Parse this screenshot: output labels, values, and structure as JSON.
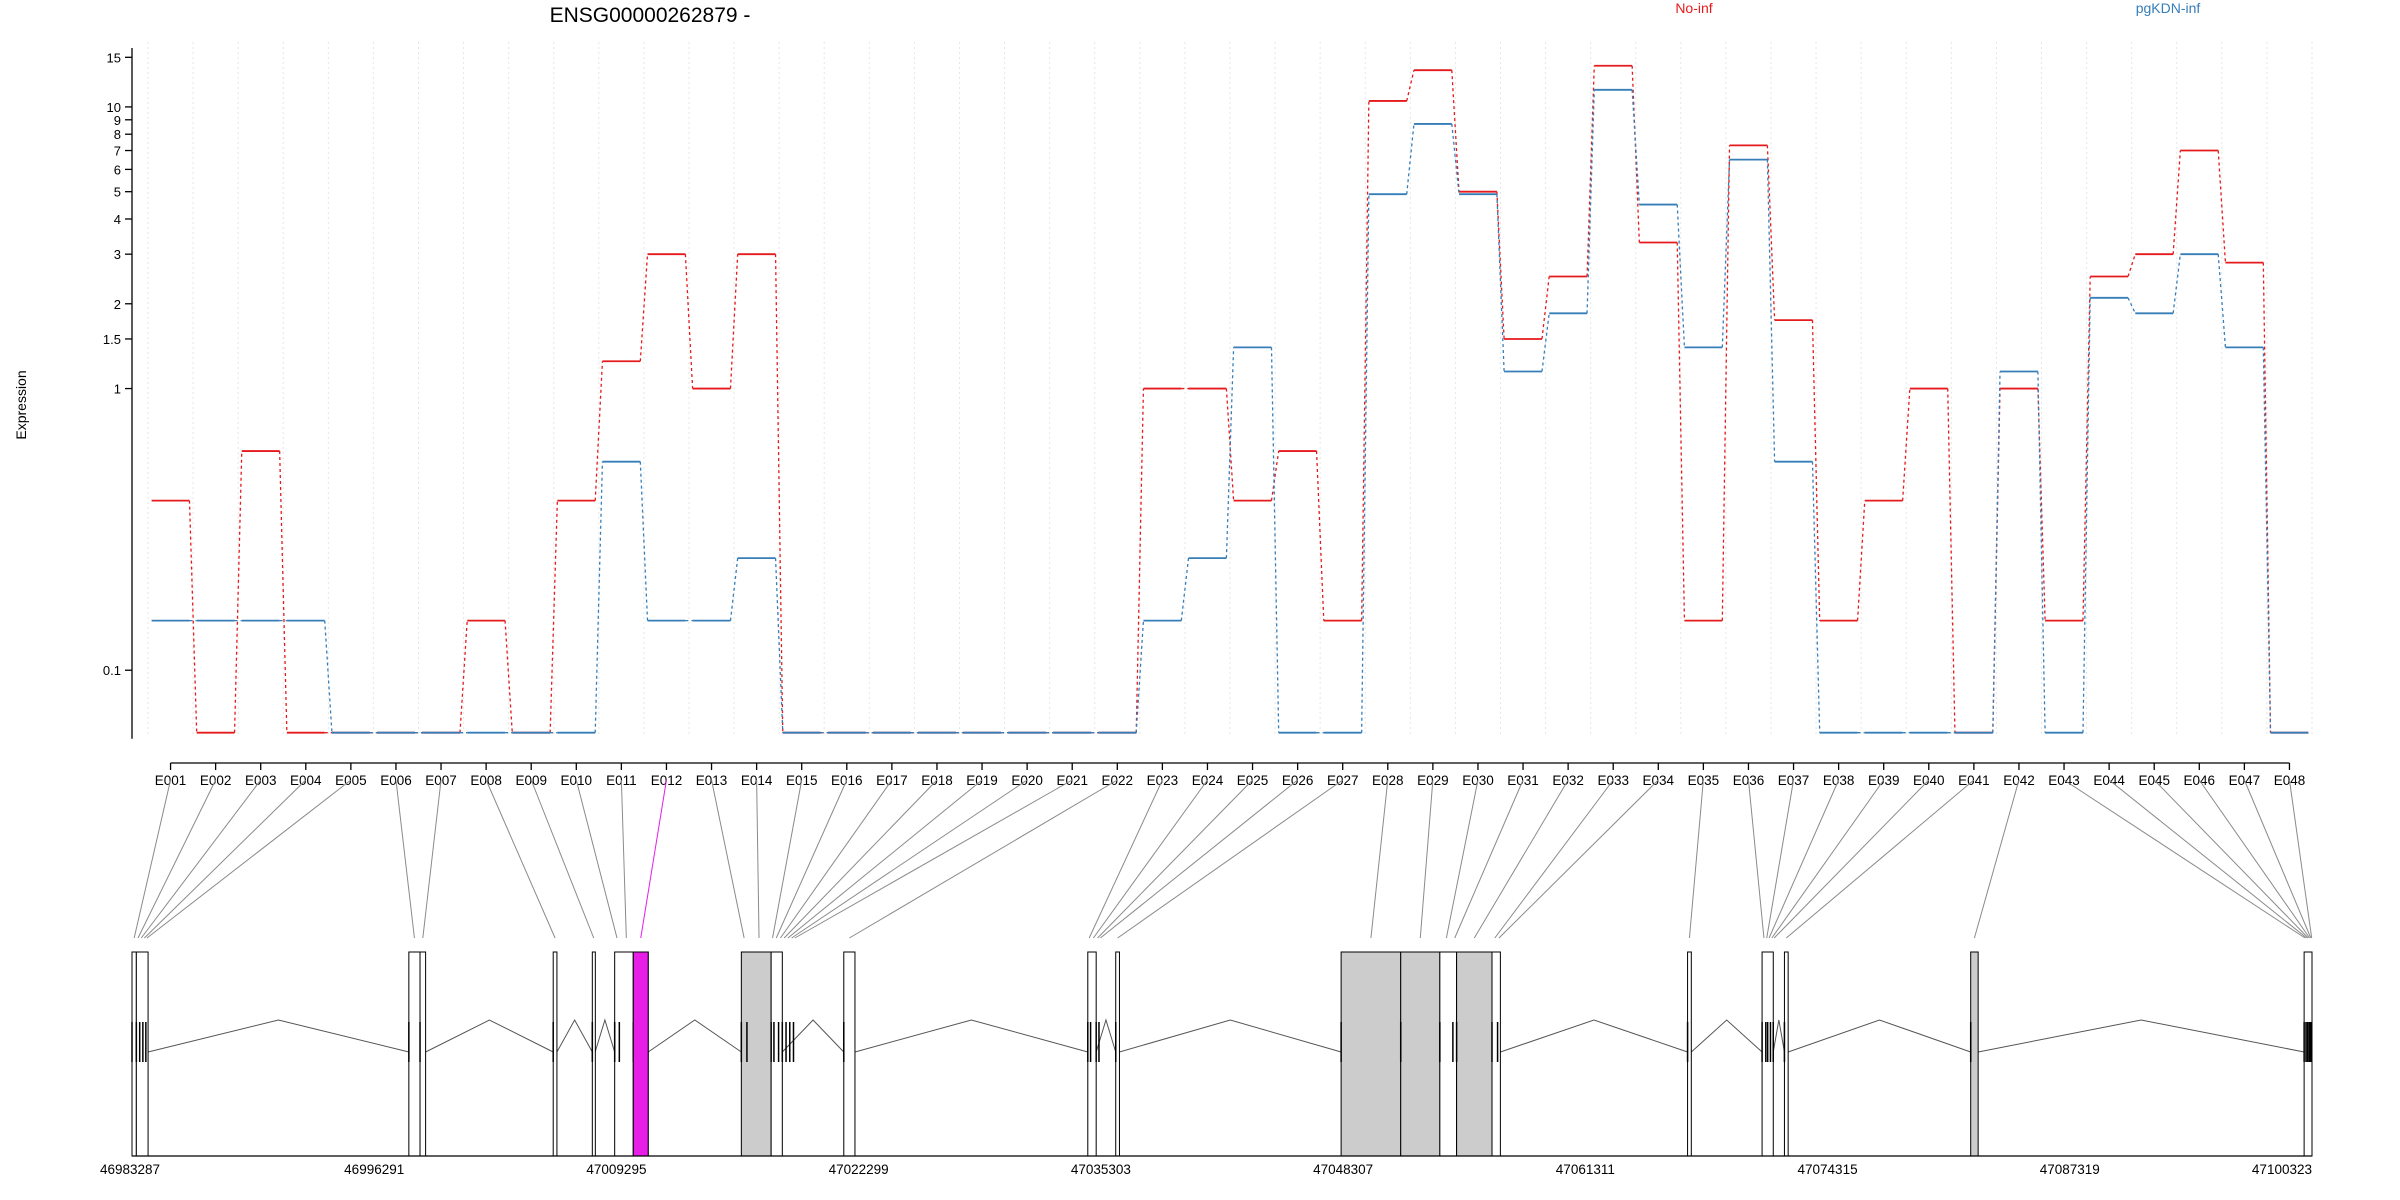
{
  "chart_data": {
    "type": "line",
    "title": "ENSG00000262879 -",
    "ylabel": "Expression",
    "xlabel": "",
    "y_scale": "log",
    "y_ticks": [
      0.1,
      1,
      1.5,
      2,
      3,
      4,
      5,
      6,
      7,
      8,
      9,
      10,
      15
    ],
    "y_tick_labels": [
      "0.1",
      "1",
      "1.5",
      "2",
      "3",
      "4",
      "5",
      "6",
      "7",
      "8",
      "9",
      "10",
      "15"
    ],
    "ylim": [
      0.05,
      17
    ],
    "grid": "vertical dotted per exon",
    "legend_placement": "top",
    "categories": [
      "E001",
      "E002",
      "E003",
      "E004",
      "E005",
      "E006",
      "E007",
      "E008",
      "E009",
      "E010",
      "E011",
      "E012",
      "E013",
      "E014",
      "E015",
      "E016",
      "E017",
      "E018",
      "E019",
      "E020",
      "E021",
      "E022",
      "E023",
      "E024",
      "E025",
      "E026",
      "E027",
      "E028",
      "E029",
      "E030",
      "E031",
      "E032",
      "E033",
      "E034",
      "E035",
      "E036",
      "E037",
      "E038",
      "E039",
      "E040",
      "E041",
      "E042",
      "E043",
      "E044",
      "E045",
      "E046",
      "E047",
      "E048"
    ],
    "highlighted_exon": "E012",
    "series": [
      {
        "name": "No-inf",
        "color": "#e41a1c",
        "values": [
          0.4,
          0.06,
          0.6,
          0.06,
          0.06,
          0.06,
          0.06,
          0.15,
          0.06,
          0.4,
          1.25,
          3.0,
          1.0,
          3.0,
          0.06,
          0.06,
          0.06,
          0.06,
          0.06,
          0.06,
          0.06,
          0.06,
          1.0,
          1.0,
          0.4,
          0.6,
          0.15,
          10.5,
          13.5,
          5.0,
          1.5,
          2.5,
          14.0,
          3.3,
          0.15,
          7.3,
          1.75,
          0.15,
          0.4,
          1.0,
          0.06,
          1.0,
          0.15,
          2.5,
          3.0,
          7.0,
          2.8,
          0.06
        ]
      },
      {
        "name": "pgKDN-inf",
        "color": "#377eb8",
        "values": [
          0.15,
          0.15,
          0.15,
          0.15,
          0.06,
          0.06,
          0.06,
          0.06,
          0.06,
          0.06,
          0.55,
          0.15,
          0.15,
          0.25,
          0.06,
          0.06,
          0.06,
          0.06,
          0.06,
          0.06,
          0.06,
          0.06,
          0.15,
          0.25,
          1.4,
          0.06,
          0.06,
          4.9,
          8.7,
          4.9,
          1.15,
          1.85,
          11.5,
          4.5,
          1.4,
          6.5,
          0.55,
          0.06,
          0.06,
          0.06,
          0.06,
          1.15,
          0.06,
          2.1,
          1.85,
          3.0,
          1.4,
          0.06
        ]
      }
    ],
    "genomic_axis": {
      "tick_labels": [
        "46983287",
        "46996291",
        "47009295",
        "47022299",
        "47035303",
        "47048307",
        "47061311",
        "47074315",
        "47087319",
        "47100323"
      ],
      "range": [
        46983287,
        47100323
      ]
    },
    "exon_coords": [
      [
        46983287,
        46983520
      ],
      [
        46983520,
        46983700
      ],
      [
        46983700,
        46983870
      ],
      [
        46983870,
        46984030
      ],
      [
        46984030,
        46984150
      ],
      [
        46998150,
        46998750
      ],
      [
        46998750,
        46999050
      ],
      [
        47005900,
        47006100
      ],
      [
        47008000,
        47008150
      ],
      [
        47009200,
        47009450
      ],
      [
        47009450,
        47010200
      ],
      [
        47010200,
        47011000
      ],
      [
        47016000,
        47016300
      ],
      [
        47016300,
        47017600
      ],
      [
        47017600,
        47017750
      ],
      [
        47017750,
        47018000
      ],
      [
        47018000,
        47018200
      ],
      [
        47018200,
        47018400
      ],
      [
        47018400,
        47018600
      ],
      [
        47018600,
        47018800
      ],
      [
        47018800,
        47018950
      ],
      [
        47021500,
        47022100
      ],
      [
        47034600,
        47034750
      ],
      [
        47034750,
        47035050
      ],
      [
        47035050,
        47035200
      ],
      [
        47035200,
        47035350
      ],
      [
        47036100,
        47036300
      ],
      [
        47048200,
        47051400
      ],
      [
        47051400,
        47053500
      ],
      [
        47053500,
        47054200
      ],
      [
        47054200,
        47054400
      ],
      [
        47054400,
        47056300
      ],
      [
        47056300,
        47056600
      ],
      [
        47056600,
        47056750
      ],
      [
        47066800,
        47067000
      ],
      [
        47070800,
        47071000
      ],
      [
        47071000,
        47071100
      ],
      [
        47071100,
        47071250
      ],
      [
        47071250,
        47071400
      ],
      [
        47071400,
        47071500
      ],
      [
        47072000,
        47072200
      ],
      [
        47082000,
        47082400
      ],
      [
        47099900,
        47100000
      ],
      [
        47100000,
        47100080
      ],
      [
        47100080,
        47100160
      ],
      [
        47100160,
        47100230
      ],
      [
        47100230,
        47100290
      ],
      [
        47100290,
        47100323
      ]
    ],
    "transcript": {
      "blocks": [
        [
          46983287,
          46983520
        ],
        [
          46983520,
          46984150
        ],
        [
          46998150,
          46998750
        ],
        [
          46998750,
          46999050
        ],
        [
          47005900,
          47006100
        ],
        [
          47008000,
          47008150
        ],
        [
          47009200,
          47010200
        ],
        [
          47010200,
          47011000
        ],
        [
          47016000,
          47017600
        ],
        [
          47017600,
          47018200
        ],
        [
          47021500,
          47022100
        ],
        [
          47034600,
          47035050
        ],
        [
          47036100,
          47036300
        ],
        [
          47048200,
          47051400
        ],
        [
          47051400,
          47053500
        ],
        [
          47053500,
          47054400
        ],
        [
          47054400,
          47056300
        ],
        [
          47056300,
          47056750
        ],
        [
          47066800,
          47067000
        ],
        [
          47070800,
          47071400
        ],
        [
          47072000,
          47072200
        ],
        [
          47082000,
          47082400
        ],
        [
          47099900,
          47100323
        ]
      ],
      "gray_blocks": [
        [
          47009450,
          47010200
        ],
        [
          47016000,
          47017600
        ],
        [
          47048200,
          47051400
        ],
        [
          47051400,
          47053500
        ],
        [
          47054400,
          47056300
        ],
        [
          47082000,
          47082400
        ]
      ],
      "highlight_block": [
        47010200,
        47011000
      ],
      "highlight_color": "#e61ee6"
    }
  }
}
